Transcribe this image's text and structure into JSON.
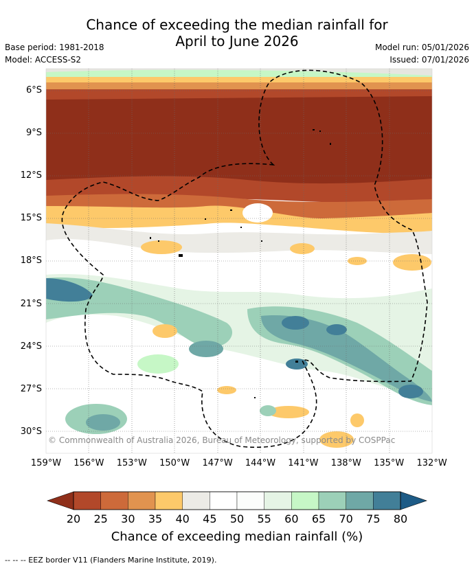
{
  "title": {
    "line1": "Chance of exceeding the median rainfall for",
    "line2": "April to June 2026"
  },
  "meta_left": {
    "base_period": "Base period: 1981-2018",
    "model": "Model: ACCESS-S2"
  },
  "meta_right": {
    "model_run": "Model run: 05/01/2026",
    "issued": "Issued: 07/01/2026"
  },
  "map": {
    "lat_labels": [
      "6°S",
      "9°S",
      "12°S",
      "15°S",
      "18°S",
      "21°S",
      "24°S",
      "27°S",
      "30°S"
    ],
    "lon_labels": [
      "159°W",
      "156°W",
      "153°W",
      "150°W",
      "147°W",
      "144°W",
      "141°W",
      "138°W",
      "135°W",
      "132°W"
    ],
    "copyright": "© Commonwealth of Australia 2026, Bureau of Meteorology, supported by COSPPac"
  },
  "colorbar": {
    "labels": [
      "20",
      "25",
      "30",
      "35",
      "40",
      "45",
      "50",
      "55",
      "60",
      "65",
      "70",
      "75",
      "80"
    ],
    "colors": [
      "#8f2f1a",
      "#b2482a",
      "#cd6a3a",
      "#e1934f",
      "#fdc96a",
      "#ecebe6",
      "#ffffff",
      "#fbfdfb",
      "#e5f4e5",
      "#c6f7c6",
      "#9cd0b8",
      "#6fa8a6",
      "#427f98",
      "#1d5b86"
    ],
    "title": "Chance of exceeding median rainfall (%)"
  },
  "footer": "--  --  -- EEZ border V11 (Flanders Marine Institute, 2019)."
}
